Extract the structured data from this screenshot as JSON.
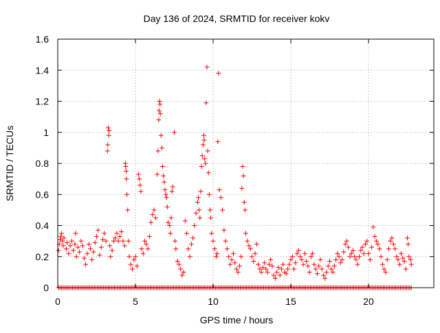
{
  "chart_data": {
    "type": "scatter",
    "title": "Day 136 of 2024, SRMTID for receiver kokv",
    "xlabel": "GPS time / hours",
    "ylabel": "SRMTID / TECUs",
    "xlim": [
      0,
      24.2
    ],
    "ylim": [
      0,
      1.6
    ],
    "x_ticks": [
      0,
      5,
      10,
      15,
      20
    ],
    "x_tick_labels": [
      "0",
      "5",
      "10",
      "15",
      "20"
    ],
    "y_ticks": [
      0,
      0.2,
      0.4,
      0.6,
      0.8,
      1.0,
      1.2,
      1.4,
      1.6
    ],
    "y_tick_labels": [
      "0",
      "0.2",
      "0.4",
      "0.6",
      "0.8",
      "1",
      "1.2",
      "1.4",
      "1.6"
    ],
    "grid": true,
    "marker": "+",
    "series_color": "#ff0000",
    "series": [
      {
        "name": "SRMTID",
        "points": [
          [
            0.05,
            0.24
          ],
          [
            0.1,
            0.28
          ],
          [
            0.15,
            0.31
          ],
          [
            0.2,
            0.33
          ],
          [
            0.25,
            0.35
          ],
          [
            0.3,
            0.3
          ],
          [
            0.35,
            0.27
          ],
          [
            0.4,
            0.32
          ],
          [
            0.55,
            0.25
          ],
          [
            0.6,
            0.29
          ],
          [
            0.7,
            0.22
          ],
          [
            0.8,
            0.27
          ],
          [
            0.9,
            0.3
          ],
          [
            1.0,
            0.24
          ],
          [
            1.1,
            0.28
          ],
          [
            1.15,
            0.35
          ],
          [
            1.2,
            0.2
          ],
          [
            1.3,
            0.26
          ],
          [
            1.4,
            0.23
          ],
          [
            1.5,
            0.3
          ],
          [
            1.6,
            0.27
          ],
          [
            1.7,
            0.19
          ],
          [
            1.8,
            0.15
          ],
          [
            1.9,
            0.22
          ],
          [
            2.0,
            0.28
          ],
          [
            2.1,
            0.25
          ],
          [
            2.2,
            0.18
          ],
          [
            2.3,
            0.23
          ],
          [
            2.4,
            0.29
          ],
          [
            2.5,
            0.33
          ],
          [
            2.6,
            0.37
          ],
          [
            2.7,
            0.21
          ],
          [
            2.8,
            0.26
          ],
          [
            2.9,
            0.31
          ],
          [
            3.0,
            0.35
          ],
          [
            3.1,
            0.3
          ],
          [
            3.2,
            0.88
          ],
          [
            3.22,
            0.92
          ],
          [
            3.25,
            1.03
          ],
          [
            3.28,
            0.98
          ],
          [
            3.3,
            1.01
          ],
          [
            3.35,
            0.27
          ],
          [
            3.4,
            0.2
          ],
          [
            3.5,
            0.24
          ],
          [
            3.6,
            0.3
          ],
          [
            3.7,
            0.32
          ],
          [
            3.8,
            0.35
          ],
          [
            3.9,
            0.3
          ],
          [
            4.0,
            0.33
          ],
          [
            4.1,
            0.36
          ],
          [
            4.2,
            0.3
          ],
          [
            4.3,
            0.27
          ],
          [
            4.35,
            0.8
          ],
          [
            4.37,
            0.78
          ],
          [
            4.4,
            0.75
          ],
          [
            4.42,
            0.7
          ],
          [
            4.45,
            0.6
          ],
          [
            4.5,
            0.5
          ],
          [
            4.55,
            0.3
          ],
          [
            4.6,
            0.2
          ],
          [
            4.7,
            0.15
          ],
          [
            4.8,
            0.12
          ],
          [
            4.9,
            0.18
          ],
          [
            5.0,
            0.2
          ],
          [
            5.1,
            0.14
          ],
          [
            5.2,
            0.73
          ],
          [
            5.25,
            0.7
          ],
          [
            5.3,
            0.66
          ],
          [
            5.35,
            0.62
          ],
          [
            5.4,
            0.25
          ],
          [
            5.5,
            0.22
          ],
          [
            5.6,
            0.3
          ],
          [
            5.7,
            0.28
          ],
          [
            5.8,
            0.25
          ],
          [
            5.9,
            0.33
          ],
          [
            6.0,
            0.42
          ],
          [
            6.1,
            0.47
          ],
          [
            6.2,
            0.5
          ],
          [
            6.3,
            0.45
          ],
          [
            6.4,
            0.73
          ],
          [
            6.45,
            0.88
          ],
          [
            6.5,
            1.08
          ],
          [
            6.52,
            1.14
          ],
          [
            6.55,
            1.2
          ],
          [
            6.58,
            1.18
          ],
          [
            6.6,
            1.12
          ],
          [
            6.65,
            0.98
          ],
          [
            6.7,
            0.9
          ],
          [
            6.75,
            0.78
          ],
          [
            6.8,
            0.72
          ],
          [
            6.85,
            0.68
          ],
          [
            6.9,
            0.63
          ],
          [
            6.95,
            0.6
          ],
          [
            7.0,
            0.58
          ],
          [
            7.05,
            0.52
          ],
          [
            7.1,
            0.42
          ],
          [
            7.2,
            0.4
          ],
          [
            7.25,
            0.35
          ],
          [
            7.3,
            0.45
          ],
          [
            7.35,
            0.62
          ],
          [
            7.4,
            0.65
          ],
          [
            7.5,
            1.0
          ],
          [
            7.55,
            0.3
          ],
          [
            7.6,
            0.25
          ],
          [
            7.7,
            0.17
          ],
          [
            7.8,
            0.15
          ],
          [
            7.9,
            0.12
          ],
          [
            8.0,
            0.08
          ],
          [
            8.1,
            0.1
          ],
          [
            8.2,
            0.43
          ],
          [
            8.3,
            0.35
          ],
          [
            8.4,
            0.25
          ],
          [
            8.5,
            0.2
          ],
          [
            8.6,
            0.28
          ],
          [
            8.7,
            0.32
          ],
          [
            8.8,
            0.4
          ],
          [
            8.9,
            0.48
          ],
          [
            9.0,
            0.55
          ],
          [
            9.05,
            0.58
          ],
          [
            9.1,
            0.5
          ],
          [
            9.15,
            0.45
          ],
          [
            9.2,
            0.62
          ],
          [
            9.25,
            0.78
          ],
          [
            9.3,
            0.85
          ],
          [
            9.35,
            0.92
          ],
          [
            9.4,
            0.98
          ],
          [
            9.42,
            0.95
          ],
          [
            9.45,
            0.83
          ],
          [
            9.5,
            0.8
          ],
          [
            9.55,
            1.19
          ],
          [
            9.6,
            1.42
          ],
          [
            9.65,
            0.88
          ],
          [
            9.7,
            0.74
          ],
          [
            9.75,
            0.6
          ],
          [
            9.8,
            0.5
          ],
          [
            9.85,
            0.45
          ],
          [
            9.9,
            0.35
          ],
          [
            10.0,
            0.3
          ],
          [
            10.1,
            0.25
          ],
          [
            10.2,
            0.2
          ],
          [
            10.25,
            0.22
          ],
          [
            10.3,
            0.94
          ],
          [
            10.35,
            1.38
          ],
          [
            10.4,
            0.63
          ],
          [
            10.5,
            0.58
          ],
          [
            10.6,
            0.5
          ],
          [
            10.7,
            0.37
          ],
          [
            10.8,
            0.3
          ],
          [
            10.9,
            0.25
          ],
          [
            11.0,
            0.2
          ],
          [
            11.1,
            0.15
          ],
          [
            11.2,
            0.18
          ],
          [
            11.3,
            0.22
          ],
          [
            11.4,
            0.16
          ],
          [
            11.5,
            0.12
          ],
          [
            11.6,
            0.1
          ],
          [
            11.7,
            0.14
          ],
          [
            11.8,
            0.2
          ],
          [
            11.85,
            0.64
          ],
          [
            11.9,
            0.78
          ],
          [
            11.95,
            0.72
          ],
          [
            12.0,
            0.55
          ],
          [
            12.05,
            0.5
          ],
          [
            12.1,
            0.35
          ],
          [
            12.2,
            0.3
          ],
          [
            12.3,
            0.27
          ],
          [
            12.4,
            0.25
          ],
          [
            12.5,
            0.2
          ],
          [
            12.6,
            0.17
          ],
          [
            12.7,
            0.22
          ],
          [
            12.8,
            0.28
          ],
          [
            12.9,
            0.15
          ],
          [
            13.0,
            0.12
          ],
          [
            13.1,
            0.1
          ],
          [
            13.2,
            0.13
          ],
          [
            13.3,
            0.16
          ],
          [
            13.4,
            0.12
          ],
          [
            13.5,
            0.1
          ],
          [
            13.6,
            0.15
          ],
          [
            13.7,
            0.18
          ],
          [
            13.8,
            0.14
          ],
          [
            13.9,
            0.08
          ],
          [
            14.0,
            0.06
          ],
          [
            14.1,
            0.1
          ],
          [
            14.2,
            0.13
          ],
          [
            14.3,
            0.08
          ],
          [
            14.4,
            0.12
          ],
          [
            14.5,
            0.15
          ],
          [
            14.6,
            0.1
          ],
          [
            14.7,
            0.09
          ],
          [
            14.8,
            0.12
          ],
          [
            14.9,
            0.15
          ],
          [
            15.0,
            0.18
          ],
          [
            15.1,
            0.2
          ],
          [
            15.2,
            0.12
          ],
          [
            15.3,
            0.16
          ],
          [
            15.4,
            0.22
          ],
          [
            15.5,
            0.24
          ],
          [
            15.6,
            0.2
          ],
          [
            15.7,
            0.18
          ],
          [
            15.8,
            0.15
          ],
          [
            15.9,
            0.22
          ],
          [
            16.0,
            0.17
          ],
          [
            16.1,
            0.14
          ],
          [
            16.2,
            0.1
          ],
          [
            16.3,
            0.2
          ],
          [
            16.4,
            0.22
          ],
          [
            16.5,
            0.15
          ],
          [
            16.6,
            0.12
          ],
          [
            16.7,
            0.09
          ],
          [
            16.8,
            0.14
          ],
          [
            16.9,
            0.18
          ],
          [
            17.0,
            0.12
          ],
          [
            17.1,
            0.08
          ],
          [
            17.2,
            0.06
          ],
          [
            17.3,
            0.1
          ],
          [
            17.4,
            0.14
          ],
          [
            17.5,
            0.17
          ],
          [
            17.6,
            0.12
          ],
          [
            17.7,
            0.1
          ],
          [
            17.8,
            0.14
          ],
          [
            17.9,
            0.18
          ],
          [
            18.0,
            0.22
          ],
          [
            18.1,
            0.2
          ],
          [
            18.2,
            0.16
          ],
          [
            18.3,
            0.18
          ],
          [
            18.4,
            0.23
          ],
          [
            18.5,
            0.28
          ],
          [
            18.6,
            0.3
          ],
          [
            18.7,
            0.26
          ],
          [
            18.8,
            0.2
          ],
          [
            18.9,
            0.22
          ],
          [
            19.0,
            0.24
          ],
          [
            19.1,
            0.2
          ],
          [
            19.2,
            0.18
          ],
          [
            19.3,
            0.15
          ],
          [
            19.4,
            0.2
          ],
          [
            19.5,
            0.24
          ],
          [
            19.6,
            0.26
          ],
          [
            19.7,
            0.22
          ],
          [
            19.8,
            0.28
          ],
          [
            19.9,
            0.3
          ],
          [
            20.0,
            0.22
          ],
          [
            20.1,
            0.18
          ],
          [
            20.2,
            0.26
          ],
          [
            20.3,
            0.39
          ],
          [
            20.4,
            0.33
          ],
          [
            20.5,
            0.3
          ],
          [
            20.6,
            0.28
          ],
          [
            20.7,
            0.25
          ],
          [
            20.8,
            0.2
          ],
          [
            20.9,
            0.15
          ],
          [
            21.0,
            0.12
          ],
          [
            21.1,
            0.1
          ],
          [
            21.2,
            0.18
          ],
          [
            21.3,
            0.25
          ],
          [
            21.4,
            0.3
          ],
          [
            21.5,
            0.32
          ],
          [
            21.6,
            0.28
          ],
          [
            21.7,
            0.25
          ],
          [
            21.8,
            0.2
          ],
          [
            21.9,
            0.18
          ],
          [
            22.0,
            0.15
          ],
          [
            22.1,
            0.22
          ],
          [
            22.2,
            0.19
          ],
          [
            22.3,
            0.17
          ],
          [
            22.4,
            0.12
          ],
          [
            22.5,
            0.32
          ],
          [
            22.55,
            0.28
          ],
          [
            22.6,
            0.2
          ],
          [
            22.7,
            0.18
          ],
          [
            22.75,
            0.15
          ]
        ],
        "zero_band_x_range": [
          0.05,
          22.75
        ],
        "zero_band_value": 0
      }
    ]
  }
}
